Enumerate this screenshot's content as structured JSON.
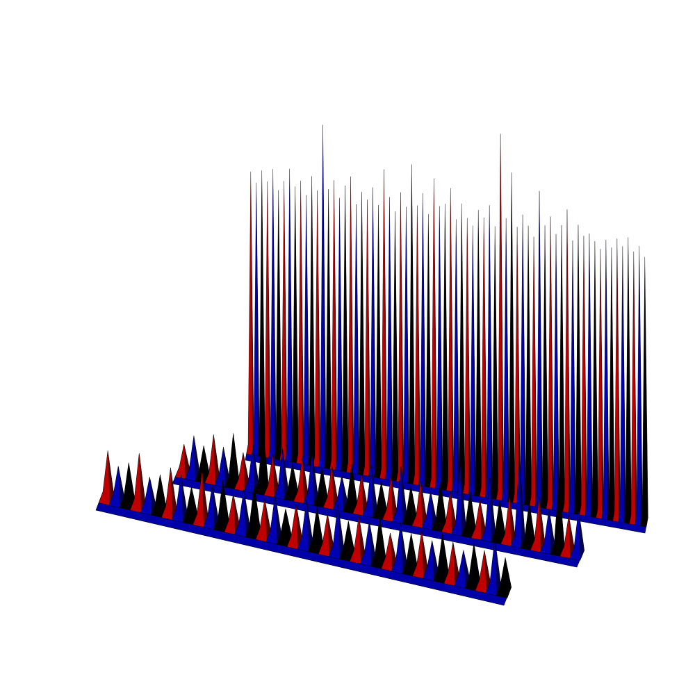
{
  "chart_data": {
    "type": "area",
    "projection": "3d",
    "title": "",
    "xlabel": "",
    "ylabel": "",
    "zlabel": "",
    "axes_visible": false,
    "grid": false,
    "legend": "none",
    "colors": {
      "alternating": [
        "#c00000",
        "#0000b4",
        "#000000"
      ],
      "edge": "#000000",
      "background": "#ffffff"
    },
    "series": [
      {
        "z_range": [
          0,
          1
        ],
        "values": [
          0.82,
          0.79,
          0.83,
          0.8,
          0.84,
          0.78,
          0.81,
          0.85,
          0.8,
          0.82,
          0.78,
          0.84,
          0.8,
          1.0,
          0.81,
          0.84,
          0.79,
          0.83,
          0.86,
          0.78,
          0.82,
          0.8,
          0.84,
          0.79,
          0.9,
          0.82,
          0.78,
          0.84,
          0.8,
          0.93,
          0.81,
          0.85,
          0.79,
          0.9,
          0.82,
          0.83,
          0.88,
          0.79,
          0.84,
          0.8,
          0.78,
          0.83,
          0.81,
          0.85,
          0.79,
          1.07,
          0.82,
          0.96,
          0.8,
          0.84,
          0.81,
          0.78,
          0.92,
          0.82,
          0.85,
          0.8,
          0.83,
          0.88,
          0.79,
          0.84,
          0.81,
          0.82,
          0.8,
          0.78,
          0.81,
          0.79,
          0.82,
          0.8,
          0.83,
          0.79,
          0.81,
          0.78
        ]
      },
      {
        "z_range": [
          0,
          1
        ],
        "values": [
          0.18,
          0.26,
          0.2,
          0.3,
          0.22,
          0.34,
          0.21,
          0.28,
          0.42,
          0.24,
          0.3,
          0.2,
          0.27,
          0.32,
          0.22,
          0.25,
          0.19,
          0.29,
          0.23,
          0.31,
          0.2,
          0.26,
          0.35,
          0.22,
          0.28,
          0.21,
          0.3,
          0.24,
          0.46,
          0.27,
          0.22,
          0.4,
          0.25,
          0.3,
          0.6,
          0.28,
          0.34,
          0.26,
          0.5,
          0.24,
          0.3
        ]
      },
      {
        "z_range": [
          0,
          1
        ],
        "values": [
          0.36,
          0.25,
          0.3,
          0.4,
          0.22,
          0.26,
          0.34,
          0.3,
          0.22,
          0.38,
          0.28,
          0.34,
          0.24,
          0.3,
          0.36,
          0.26,
          0.32,
          0.22,
          0.28,
          0.34,
          0.3,
          0.26,
          0.36,
          0.24,
          0.3,
          0.28,
          0.34,
          0.22,
          0.33,
          0.26,
          0.3,
          0.24,
          0.32,
          0.27,
          0.22,
          0.3,
          0.26,
          0.38,
          0.24
        ]
      }
    ]
  }
}
